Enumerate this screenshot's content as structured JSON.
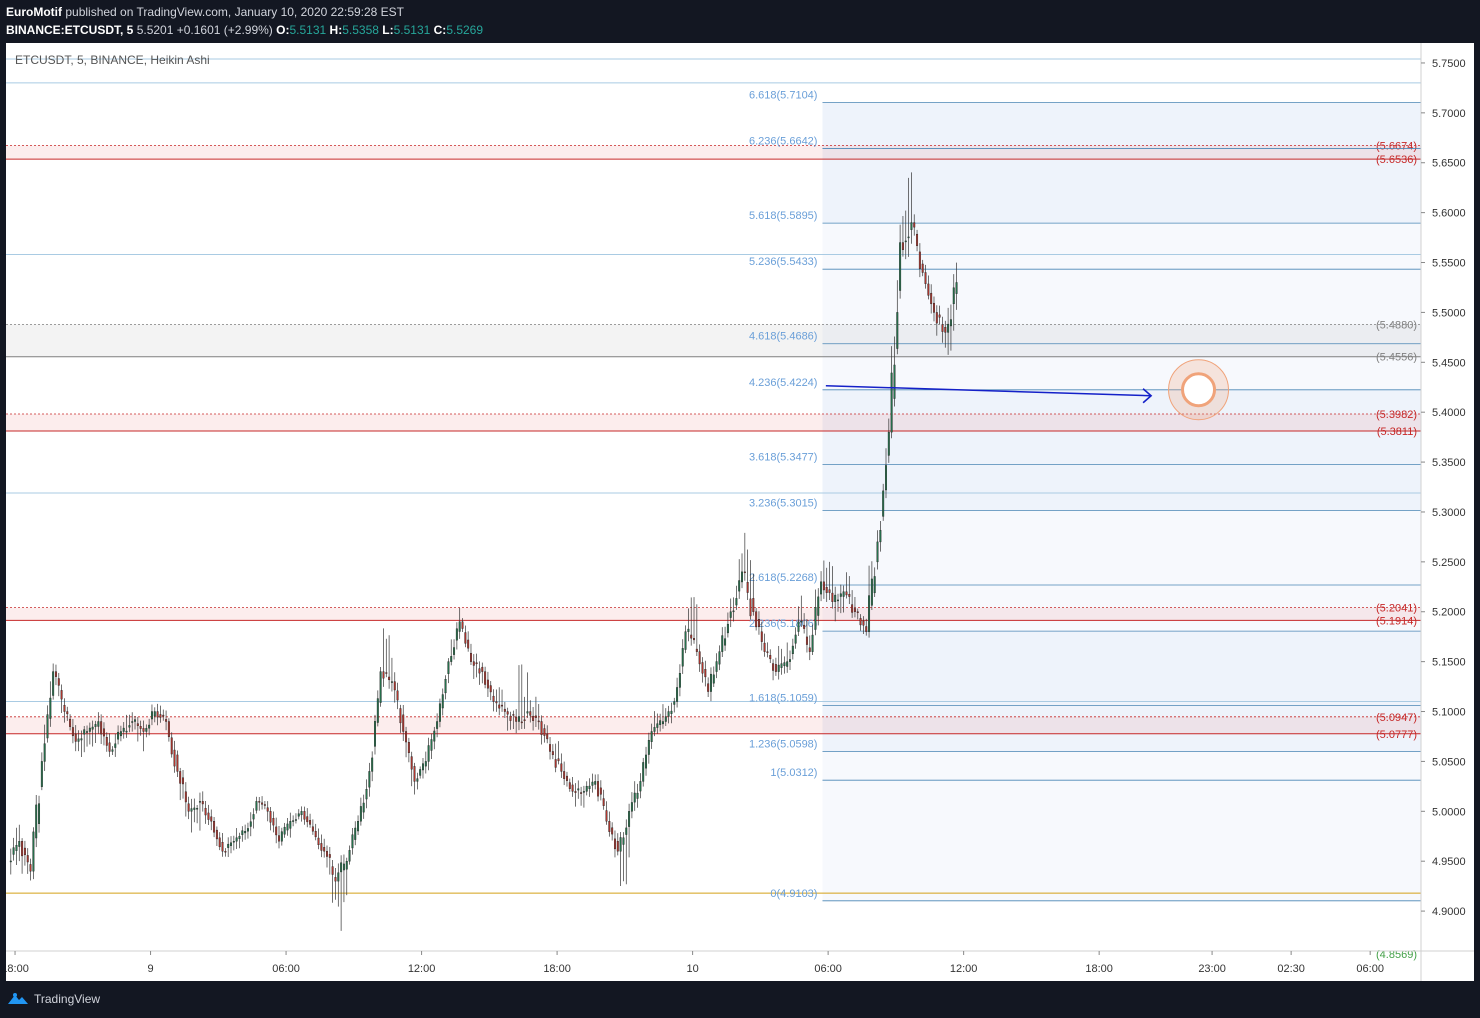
{
  "header": {
    "author": "EuroMotif",
    "published_text": "published on TradingView.com, January 10, 2020 22:59:28 EST",
    "symbol": "BINANCE:ETCUSDT, 5",
    "last_price": "5.5201",
    "change": "+0.1601 (+2.99%)",
    "o_label": "O:",
    "o_value": "5.5131",
    "h_label": "H:",
    "h_value": "5.5358",
    "l_label": "L:",
    "l_value": "5.5131",
    "c_label": "C:",
    "c_value": "5.5269"
  },
  "legend": {
    "title": "ETCUSDT, 5, BINANCE, Heikin Ashi"
  },
  "footer": {
    "brand": "TradingView"
  },
  "colors": {
    "up": "#26734d",
    "down": "#b2372f",
    "fib": "#6a9fd8",
    "zone_red": "#c62828",
    "zone_gray": "#808080",
    "arrow": "#1420c8",
    "circle": "#f0a37a",
    "support": "#d4a017"
  },
  "chart_data": {
    "type": "candlestick",
    "title": "ETCUSDT, 5, BINANCE, Heikin Ashi",
    "y_range": [
      4.86,
      5.77
    ],
    "y_ticks": [
      "5.7500",
      "5.7000",
      "5.6500",
      "5.6000",
      "5.5500",
      "5.5000",
      "5.4500",
      "5.4000",
      "5.3500",
      "5.3000",
      "5.2500",
      "5.2000",
      "5.1500",
      "5.1000",
      "5.0500",
      "5.0000",
      "4.9500",
      "4.9000"
    ],
    "x_ticks": [
      "18:00",
      "9",
      "06:00",
      "12:00",
      "18:00",
      "10",
      "06:00",
      "12:00",
      "18:00",
      "23:00",
      "02:30",
      "06:00"
    ],
    "x_tick_positions": [
      0,
      12,
      24,
      36,
      48,
      60,
      72,
      84,
      96,
      106,
      113,
      120
    ],
    "x_range": [
      -0.8,
      124.5
    ],
    "fib_levels": [
      {
        "label": "6.618(5.7104)",
        "value": 5.7104
      },
      {
        "label": "6.236(5.6642)",
        "value": 5.6642
      },
      {
        "label": "5.618(5.5895)",
        "value": 5.5895
      },
      {
        "label": "5.236(5.5433)",
        "value": 5.5433
      },
      {
        "label": "4.618(5.4686)",
        "value": 5.4686
      },
      {
        "label": "4.236(5.4224)",
        "value": 5.4224
      },
      {
        "label": "3.618(5.3477)",
        "value": 5.3477
      },
      {
        "label": "3.236(5.3015)",
        "value": 5.3015
      },
      {
        "label": "2.618(5.2268)",
        "value": 5.2268
      },
      {
        "label": "2.236(5.1806)",
        "value": 5.1806
      },
      {
        "label": "1.618(5.1059)",
        "value": 5.1059
      },
      {
        "label": "1.236(5.0598)",
        "value": 5.0598
      },
      {
        "label": "1(5.0312)",
        "value": 5.0312
      },
      {
        "label": "0(4.9103)",
        "value": 4.9103
      }
    ],
    "fib_start_x": 71.5,
    "fib_shaded_bands": [
      [
        5.5895,
        5.7104
      ],
      [
        5.4224,
        5.5895
      ],
      [
        5.3015,
        5.4224
      ],
      [
        5.1806,
        5.3015
      ],
      [
        5.0598,
        5.1806
      ],
      [
        4.9103,
        5.0598
      ]
    ],
    "zones": [
      {
        "top": 5.6674,
        "bottom": 5.6536,
        "top_label": "(5.6674)",
        "bottom_label": "(5.6536)",
        "kind": "red"
      },
      {
        "top": 5.488,
        "bottom": 5.4556,
        "top_label": "(5.4880)",
        "bottom_label": "(5.4556)",
        "kind": "gray"
      },
      {
        "top": 5.3982,
        "bottom": 5.3811,
        "top_label": "(5.3982)",
        "bottom_label": "(5.3811)",
        "kind": "red"
      },
      {
        "top": 5.2041,
        "bottom": 5.1914,
        "top_label": "(5.2041)",
        "bottom_label": "(5.1914)",
        "kind": "red"
      },
      {
        "top": 5.0947,
        "bottom": 5.0777,
        "top_label": "(5.0947)",
        "bottom_label": "(5.0777)",
        "kind": "red"
      }
    ],
    "bottom_label": {
      "text": "(4.8569)",
      "value": 4.8569
    },
    "extra_hlines": [
      5.754,
      5.73,
      5.558,
      5.319,
      5.11
    ],
    "support_line": 4.918,
    "arrow": {
      "x1": 71.8,
      "y1": 5.4265,
      "x2": 100.6,
      "y2": 5.4165
    },
    "circle": {
      "x": 104.8,
      "y": 5.4225
    },
    "candles_hourly": [
      [
        4.95,
        4.99,
        4.93,
        4.97
      ],
      [
        4.97,
        4.98,
        4.92,
        4.94
      ],
      [
        4.94,
        5.06,
        4.93,
        5.05
      ],
      [
        5.05,
        5.16,
        5.04,
        5.14
      ],
      [
        5.14,
        5.15,
        5.08,
        5.1
      ],
      [
        5.1,
        5.11,
        5.06,
        5.07
      ],
      [
        5.07,
        5.09,
        5.05,
        5.08
      ],
      [
        5.08,
        5.1,
        5.06,
        5.09
      ],
      [
        5.09,
        5.1,
        5.05,
        5.06
      ],
      [
        5.06,
        5.09,
        5.05,
        5.08
      ],
      [
        5.08,
        5.11,
        5.07,
        5.09
      ],
      [
        5.09,
        5.1,
        5.06,
        5.08
      ],
      [
        5.08,
        5.11,
        5.07,
        5.1
      ],
      [
        5.1,
        5.11,
        5.08,
        5.09
      ],
      [
        5.09,
        5.1,
        5.03,
        5.04
      ],
      [
        5.04,
        5.05,
        4.98,
        5.0
      ],
      [
        5.0,
        5.02,
        4.97,
        5.01
      ],
      [
        5.01,
        5.02,
        4.98,
        4.99
      ],
      [
        4.99,
        5.0,
        4.95,
        4.96
      ],
      [
        4.96,
        4.98,
        4.95,
        4.97
      ],
      [
        4.97,
        4.99,
        4.96,
        4.98
      ],
      [
        4.98,
        5.02,
        4.97,
        5.01
      ],
      [
        5.01,
        5.02,
        4.99,
        5.0
      ],
      [
        5.0,
        5.01,
        4.96,
        4.97
      ],
      [
        4.97,
        5.0,
        4.96,
        4.99
      ],
      [
        4.99,
        5.01,
        4.98,
        5.0
      ],
      [
        5.0,
        5.01,
        4.97,
        4.98
      ],
      [
        4.98,
        4.99,
        4.95,
        4.96
      ],
      [
        4.96,
        4.97,
        4.9,
        4.93
      ],
      [
        4.93,
        4.96,
        4.87,
        4.95
      ],
      [
        4.95,
        5.0,
        4.94,
        4.99
      ],
      [
        4.99,
        5.05,
        4.98,
        5.04
      ],
      [
        5.04,
        5.15,
        5.03,
        5.14
      ],
      [
        5.14,
        5.19,
        5.12,
        5.13
      ],
      [
        5.13,
        5.14,
        5.06,
        5.08
      ],
      [
        5.08,
        5.09,
        5.01,
        5.03
      ],
      [
        5.03,
        5.06,
        5.02,
        5.05
      ],
      [
        5.05,
        5.1,
        5.04,
        5.09
      ],
      [
        5.09,
        5.16,
        5.08,
        5.15
      ],
      [
        5.15,
        5.21,
        5.14,
        5.19
      ],
      [
        5.19,
        5.2,
        5.14,
        5.15
      ],
      [
        5.15,
        5.16,
        5.12,
        5.14
      ],
      [
        5.14,
        5.15,
        5.1,
        5.11
      ],
      [
        5.11,
        5.13,
        5.09,
        5.1
      ],
      [
        5.1,
        5.11,
        5.07,
        5.09
      ],
      [
        5.09,
        5.16,
        5.08,
        5.1
      ],
      [
        5.1,
        5.12,
        5.08,
        5.09
      ],
      [
        5.09,
        5.1,
        5.05,
        5.06
      ],
      [
        5.06,
        5.08,
        5.03,
        5.04
      ],
      [
        5.04,
        5.05,
        5.01,
        5.02
      ],
      [
        5.02,
        5.03,
        5.0,
        5.02
      ],
      [
        5.02,
        5.04,
        5.01,
        5.03
      ],
      [
        5.03,
        5.04,
        4.98,
        4.99
      ],
      [
        4.99,
        5.0,
        4.95,
        4.96
      ],
      [
        4.96,
        5.01,
        4.91,
        5.0
      ],
      [
        5.0,
        5.05,
        4.99,
        5.03
      ],
      [
        5.03,
        5.09,
        5.02,
        5.08
      ],
      [
        5.08,
        5.11,
        5.07,
        5.09
      ],
      [
        5.09,
        5.12,
        5.08,
        5.11
      ],
      [
        5.11,
        5.19,
        5.1,
        5.18
      ],
      [
        5.18,
        5.23,
        5.15,
        5.16
      ],
      [
        5.16,
        5.17,
        5.11,
        5.12
      ],
      [
        5.12,
        5.17,
        5.11,
        5.16
      ],
      [
        5.16,
        5.22,
        5.15,
        5.2
      ],
      [
        5.2,
        5.27,
        5.19,
        5.24
      ],
      [
        5.24,
        5.31,
        5.19,
        5.2
      ],
      [
        5.2,
        5.21,
        5.15,
        5.16
      ],
      [
        5.16,
        5.17,
        5.13,
        5.14
      ],
      [
        5.14,
        5.17,
        5.13,
        5.15
      ],
      [
        5.15,
        5.21,
        5.14,
        5.19
      ],
      [
        5.19,
        5.22,
        5.15,
        5.16
      ],
      [
        5.16,
        5.25,
        5.15,
        5.23
      ],
      [
        5.23,
        5.26,
        5.2,
        5.21
      ],
      [
        5.21,
        5.23,
        5.19,
        5.22
      ],
      [
        5.22,
        5.24,
        5.19,
        5.2
      ],
      [
        5.2,
        5.21,
        5.17,
        5.18
      ],
      [
        5.18,
        5.3,
        5.17,
        5.27
      ],
      [
        5.27,
        5.4,
        5.26,
        5.38
      ],
      [
        5.38,
        5.61,
        5.37,
        5.57
      ],
      [
        5.57,
        5.65,
        5.55,
        5.59
      ],
      [
        5.59,
        5.6,
        5.53,
        5.54
      ],
      [
        5.54,
        5.55,
        5.49,
        5.5
      ],
      [
        5.5,
        5.51,
        5.46,
        5.48
      ],
      [
        5.48,
        5.55,
        5.45,
        5.53
      ]
    ]
  }
}
